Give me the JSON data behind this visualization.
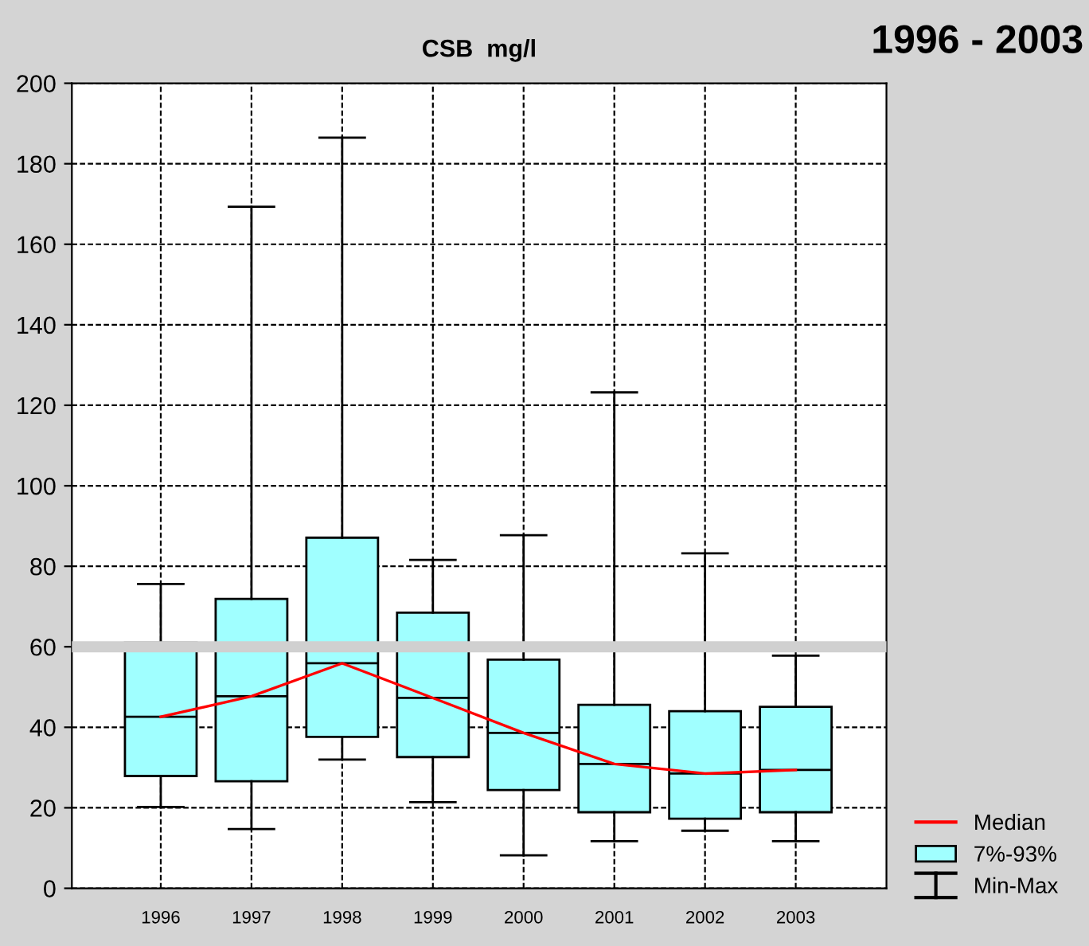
{
  "chart_data": {
    "type": "box",
    "title": "CSB  mg/l",
    "subtitle": "1996 - 2003",
    "categories": [
      "1996",
      "1997",
      "1998",
      "1999",
      "2000",
      "2001",
      "2002",
      "2003"
    ],
    "series": [
      {
        "type": "line",
        "name": "Median",
        "color": "#ff0000",
        "values": [
          42.6,
          47.7,
          55.9,
          47.3,
          38.6,
          30.9,
          28.5,
          29.4
        ]
      },
      {
        "name": "7%-93%",
        "color": "#a0ffff",
        "boxes": [
          {
            "low": 20.2,
            "q1": 27.9,
            "median": 42.6,
            "q3": 61,
            "high": 75.6
          },
          {
            "low": 14.7,
            "q1": 26.6,
            "median": 47.7,
            "q3": 71.9,
            "high": 169.3
          },
          {
            "low": 32.0,
            "q1": 37.6,
            "median": 55.9,
            "q3": 87.1,
            "high": 186.5
          },
          {
            "low": 21.4,
            "q1": 32.6,
            "median": 47.3,
            "q3": 68.5,
            "high": 81.6
          },
          {
            "low": 8.2,
            "q1": 24.4,
            "median": 38.6,
            "q3": 56.8,
            "high": 87.7
          },
          {
            "low": 11.7,
            "q1": 18.9,
            "median": 30.9,
            "q3": 45.6,
            "high": 123.2
          },
          {
            "low": 14.3,
            "q1": 17.3,
            "median": 28.5,
            "q3": 44.0,
            "high": 83.2
          },
          {
            "low": 11.7,
            "q1": 18.9,
            "median": 29.4,
            "q3": 45.1,
            "high": 57.8
          }
        ]
      }
    ],
    "annotations": [
      "Min-Max"
    ],
    "ylim": [
      0,
      200
    ],
    "yticks": [
      0,
      20,
      40,
      60,
      80,
      100,
      120,
      140,
      160,
      180,
      200
    ],
    "ref_lines": [
      {
        "axis": "y",
        "value": 60,
        "label": null,
        "color": "#d0d0d0"
      }
    ],
    "grid": true,
    "legend": "bottom right",
    "marker": "none",
    "line_style": "solid"
  }
}
